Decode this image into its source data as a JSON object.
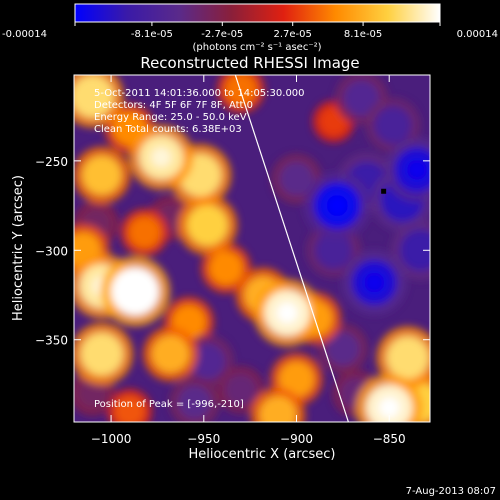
{
  "chart_data": {
    "type": "heatmap",
    "title": "Reconstructed RHESSI Image",
    "xlabel": "Heliocentric X (arcsec)",
    "ylabel": "Heliocentric Y (arcsec)",
    "xlim": [
      -1020,
      -828
    ],
    "ylim": [
      -396,
      -202
    ],
    "xticks": [
      -1000,
      -950,
      -900,
      -850
    ],
    "yticks": [
      -250,
      -300,
      -350
    ],
    "colorbar": {
      "min": -0.00014,
      "max": 0.00014,
      "tick_labels": [
        "-0.00014",
        "-8.1e-05",
        "-2.7e-05",
        "2.7e-05",
        "8.1e-05",
        "0.00014"
      ],
      "unit_label": "(photons cm⁻² s⁻¹ asec⁻²)",
      "colors": [
        "#0000ff",
        "#3a1aa8",
        "#5a2a8a",
        "#8a1f3a",
        "#e02010",
        "#ff8a00",
        "#ffd040",
        "#ffffff"
      ]
    },
    "info_lines": [
      "5-Oct-2011 14:01:36.000 to 14:05:30.000",
      "Detectors: 4F 5F 6F 7F 8F, Att 0",
      "Energy Range: 25.0 - 50.0 keV",
      "Clean     Total counts: 6.38E+03"
    ],
    "peak_label": "Position of Peak = [-996,-210]",
    "peak": [
      -996,
      -210
    ],
    "marker": [
      -853,
      -267
    ],
    "limb_line": [
      [
        -933,
        -202
      ],
      [
        -872,
        -396
      ]
    ],
    "blobs": [
      {
        "x": -1010,
        "y": -214,
        "v": 0.00011
      },
      {
        "x": -973,
        "y": -248,
        "v": 0.00012
      },
      {
        "x": -952,
        "y": -258,
        "v": 0.00011
      },
      {
        "x": -990,
        "y": -232,
        "v": 6e-05
      },
      {
        "x": -1005,
        "y": -258,
        "v": 9e-05
      },
      {
        "x": -948,
        "y": -286,
        "v": 0.0001
      },
      {
        "x": -938,
        "y": -310,
        "v": 6e-05
      },
      {
        "x": -1005,
        "y": -320,
        "v": 0.00012
      },
      {
        "x": -987,
        "y": -323,
        "v": 0.00014
      },
      {
        "x": -1015,
        "y": -300,
        "v": 7e-05
      },
      {
        "x": -982,
        "y": -290,
        "v": 5e-05
      },
      {
        "x": -905,
        "y": -335,
        "v": 0.00013
      },
      {
        "x": -918,
        "y": -325,
        "v": 8e-05
      },
      {
        "x": -890,
        "y": -338,
        "v": 7e-05
      },
      {
        "x": -1005,
        "y": -358,
        "v": 0.00011
      },
      {
        "x": -968,
        "y": -358,
        "v": 8e-05
      },
      {
        "x": -958,
        "y": -340,
        "v": 6e-05
      },
      {
        "x": -900,
        "y": -372,
        "v": 7e-05
      },
      {
        "x": -910,
        "y": -392,
        "v": 8e-05
      },
      {
        "x": -990,
        "y": -390,
        "v": 4e-05
      },
      {
        "x": -840,
        "y": -360,
        "v": 0.00011
      },
      {
        "x": -850,
        "y": -388,
        "v": 0.00013
      },
      {
        "x": -834,
        "y": -385,
        "v": 0.0001
      },
      {
        "x": -880,
        "y": -228,
        "v": 3e-05
      },
      {
        "x": -930,
        "y": -210,
        "v": 5e-05
      },
      {
        "x": -968,
        "y": -282,
        "v": -4e-05
      },
      {
        "x": -1008,
        "y": -285,
        "v": -4e-05
      },
      {
        "x": -955,
        "y": -385,
        "v": -6e-05
      },
      {
        "x": -948,
        "y": -362,
        "v": -7e-05
      },
      {
        "x": -930,
        "y": -378,
        "v": -5e-05
      },
      {
        "x": -1010,
        "y": -380,
        "v": -4e-05
      },
      {
        "x": -865,
        "y": -215,
        "v": -7e-05
      },
      {
        "x": -848,
        "y": -230,
        "v": -8e-05
      },
      {
        "x": -835,
        "y": -255,
        "v": -0.00012
      },
      {
        "x": -878,
        "y": -275,
        "v": -0.00013
      },
      {
        "x": -862,
        "y": -262,
        "v": -0.0001
      },
      {
        "x": -843,
        "y": -272,
        "v": -0.00011
      },
      {
        "x": -833,
        "y": -300,
        "v": -0.0001
      },
      {
        "x": -858,
        "y": -318,
        "v": -0.00012
      },
      {
        "x": -880,
        "y": -300,
        "v": -8e-05
      },
      {
        "x": -900,
        "y": -260,
        "v": -6e-05
      },
      {
        "x": -875,
        "y": -355,
        "v": -6e-05
      },
      {
        "x": -868,
        "y": -380,
        "v": -5e-05
      }
    ]
  },
  "footer": {
    "date": "7-Aug-2013 08:07"
  }
}
